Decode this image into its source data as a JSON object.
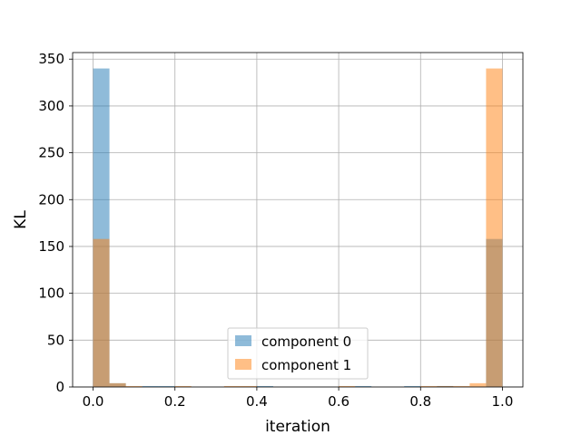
{
  "chart_data": {
    "type": "bar",
    "title": "",
    "xlabel": "iteration",
    "ylabel": "KL",
    "xlim": [
      -0.05,
      1.05
    ],
    "ylim": [
      0,
      357
    ],
    "grid": true,
    "legend_position": "bottom-center",
    "x_ticks": [
      0.0,
      0.2,
      0.4,
      0.6,
      0.8,
      1.0
    ],
    "x_tick_labels": [
      "0.0",
      "0.2",
      "0.4",
      "0.6",
      "0.8",
      "1.0"
    ],
    "y_ticks": [
      0,
      50,
      100,
      150,
      200,
      250,
      300,
      350
    ],
    "y_tick_labels": [
      "0",
      "50",
      "100",
      "150",
      "200",
      "250",
      "300",
      "350"
    ],
    "bin_edges": [
      0.0,
      0.04,
      0.08,
      0.12,
      0.16,
      0.2,
      0.24,
      0.28,
      0.32,
      0.36,
      0.4,
      0.44,
      0.48,
      0.52,
      0.56,
      0.6,
      0.64,
      0.68,
      0.72,
      0.76,
      0.8,
      0.84,
      0.88,
      0.92,
      0.96,
      1.0
    ],
    "series": [
      {
        "name": "component 0",
        "color": "#1f77b4",
        "opacity": 0.5,
        "values": [
          340,
          4,
          0,
          1,
          1,
          0,
          0,
          0,
          0,
          0,
          1,
          0,
          0,
          0,
          0,
          0,
          1,
          0,
          0,
          1,
          0,
          1,
          0,
          0,
          158
        ]
      },
      {
        "name": "component 1",
        "color": "#ff7f0e",
        "opacity": 0.5,
        "values": [
          158,
          4,
          1,
          0,
          0,
          1,
          0,
          0,
          1,
          1,
          0,
          0,
          0,
          0,
          0,
          1,
          0,
          0,
          0,
          0,
          1,
          1,
          1,
          4,
          340
        ]
      }
    ]
  }
}
